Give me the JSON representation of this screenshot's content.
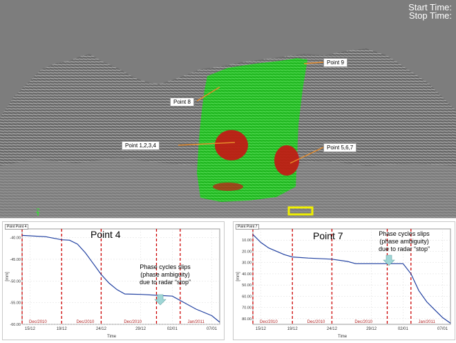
{
  "viewport": {
    "start_time_label": "Start Time:",
    "stop_time_label": "Stop Time:",
    "axis_label": "Z",
    "callouts": {
      "point9": "Point 9",
      "point8": "Point 8",
      "point1234": "Point 1,2,3,4",
      "point567": "Point 5,6,7"
    }
  },
  "charts": [
    {
      "title": "Point 4",
      "legend": "Point Point 4",
      "ylabel": "[mm]",
      "xlabel": "Time",
      "annotation": [
        "Phase cycles slips",
        "(phase ambiguity)",
        "due to radar “stop”"
      ],
      "month_labels": [
        "Dec/2010",
        "Dec/2010",
        "Dec/2010",
        "Jan/2011"
      ],
      "x_ticks": [
        "15/12",
        "19/12",
        "24/12",
        "29/12",
        "02/01",
        "07/01"
      ],
      "y_ticks": [
        "-40.00",
        "-45.00",
        "-50.00",
        "-55.00",
        "-60.00"
      ],
      "annotation_colors": {
        "arrow": "#9fd6d6",
        "dashed": "#cc0000",
        "line": "#1f3fa0"
      }
    },
    {
      "title": "Point 7",
      "legend": "Point Point 7",
      "ylabel": "[mm]",
      "xlabel": "Time",
      "annotation": [
        "Phase cycles slips",
        "(phase ambiguity)",
        "due to radar “stop”"
      ],
      "month_labels": [
        "Dec/2010",
        "Dec/2010",
        "Dec/2010",
        "Jan/2011"
      ],
      "x_ticks": [
        "15/12",
        "19/12",
        "24/12",
        "29/12",
        "02/01",
        "07/01"
      ],
      "y_ticks": [
        "10.00",
        "20.00",
        "30.00",
        "40.00",
        "50.00",
        "60.00",
        "70.00",
        "80.00"
      ],
      "annotation_colors": {
        "arrow": "#9fd6d6",
        "dashed": "#cc0000",
        "line": "#1f3fa0"
      }
    }
  ],
  "chart_data": [
    {
      "type": "line",
      "title": "Point 4",
      "xlabel": "Time",
      "ylabel": "[mm]",
      "ylim": [
        -60,
        -38
      ],
      "x": [
        "14/12",
        "17/12",
        "19/12",
        "20/12",
        "21/12",
        "22/12",
        "23/12",
        "24/12",
        "25/12",
        "26/12",
        "27/12",
        "29/12",
        "31/12",
        "02/01",
        "03/01",
        "05/01",
        "07/01",
        "08/01"
      ],
      "series": [
        {
          "name": "Point Point 4",
          "values": [
            -39.5,
            -39.8,
            -40.5,
            -40.6,
            -41.5,
            -43.5,
            -46.0,
            -48.5,
            -50.5,
            -52.0,
            -53.0,
            -53.1,
            -53.3,
            -53.5,
            -54.5,
            -56.5,
            -58.0,
            -59.5
          ]
        }
      ]
    },
    {
      "type": "line",
      "title": "Point 7",
      "xlabel": "Time",
      "ylabel": "[mm]",
      "ylim": [
        0,
        85
      ],
      "x": [
        "14/12",
        "15/12",
        "16/12",
        "18/12",
        "19/12",
        "21/12",
        "24/12",
        "26/12",
        "27/12",
        "29/12",
        "31/12",
        "02/01",
        "03/01",
        "04/01",
        "05/01",
        "06/01",
        "07/01",
        "08/01"
      ],
      "series": [
        {
          "name": "Point Point 7",
          "values": [
            5,
            12,
            17,
            23,
            25,
            26,
            27,
            29,
            31,
            31,
            31,
            31,
            40,
            55,
            65,
            72,
            79,
            84
          ]
        }
      ]
    }
  ]
}
